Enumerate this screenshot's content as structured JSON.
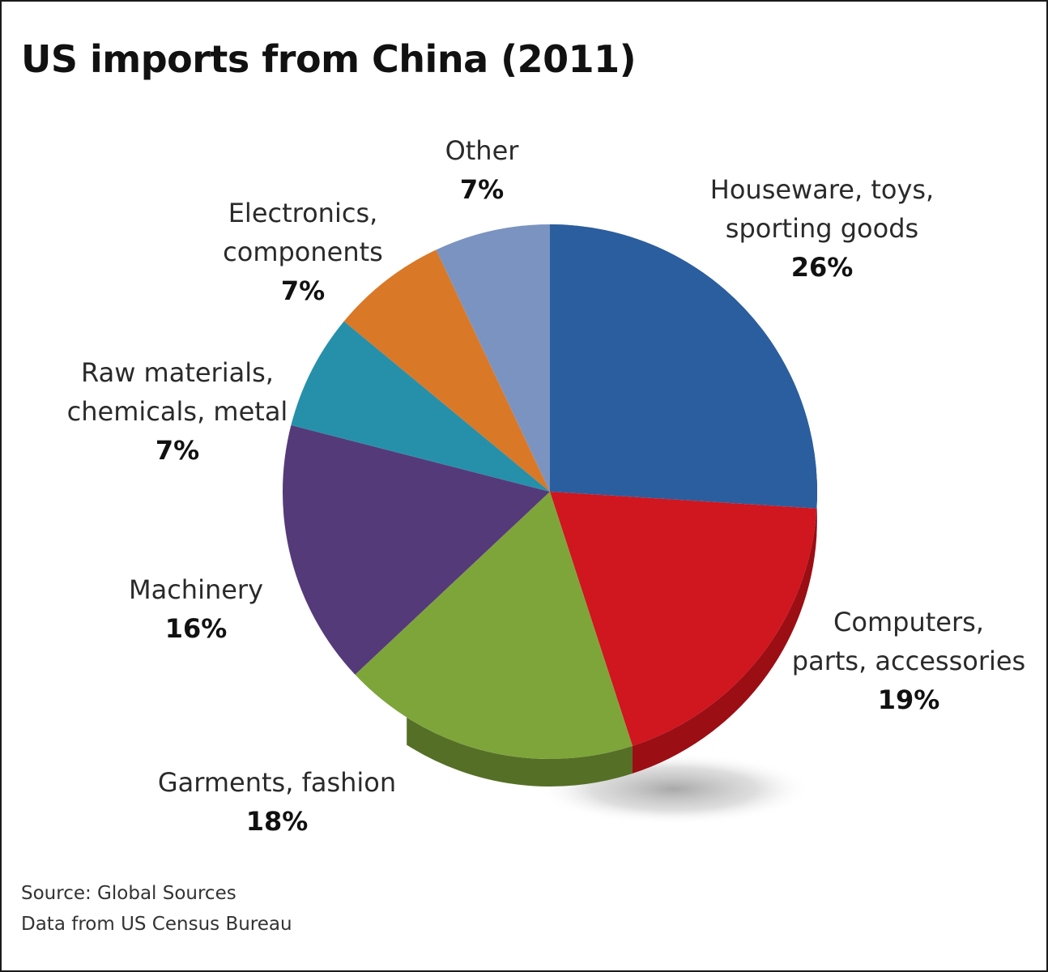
{
  "chart_data": {
    "type": "pie",
    "title": "US imports from China (2011)",
    "slices": [
      {
        "name": "Houseware, toys, sporting goods",
        "lines": [
          "Houseware, toys,",
          "sporting goods"
        ],
        "value": 26,
        "label": "26%",
        "color": "#2b5e9e",
        "side_color": "#1f4677"
      },
      {
        "name": "Computers, parts, accessories",
        "lines": [
          "Computers,",
          "parts, accessories"
        ],
        "value": 19,
        "label": "19%",
        "color": "#d0161f",
        "side_color": "#9b0e14"
      },
      {
        "name": "Garments, fashion",
        "lines": [
          "Garments, fashion"
        ],
        "value": 18,
        "label": "18%",
        "color": "#7ea53a",
        "side_color": "#566f27"
      },
      {
        "name": "Machinery",
        "lines": [
          "Machinery"
        ],
        "value": 16,
        "label": "16%",
        "color": "#553a7a",
        "side_color": "#3b2857"
      },
      {
        "name": "Raw materials, chemicals, metal",
        "lines": [
          "Raw materials,",
          "chemicals, metal"
        ],
        "value": 7,
        "label": "7%",
        "color": "#2690aa",
        "side_color": "#1a6677"
      },
      {
        "name": "Electronics, components",
        "lines": [
          "Electronics,",
          "components"
        ],
        "value": 7,
        "label": "7%",
        "color": "#d97827",
        "side_color": "#9e561b"
      },
      {
        "name": "Other",
        "lines": [
          "Other"
        ],
        "value": 7,
        "label": "7%",
        "color": "#7b93c0",
        "side_color": "#57698b"
      }
    ]
  },
  "footer": {
    "source": "Source: Global Sources",
    "data_from": "Data from US Census Bureau"
  }
}
